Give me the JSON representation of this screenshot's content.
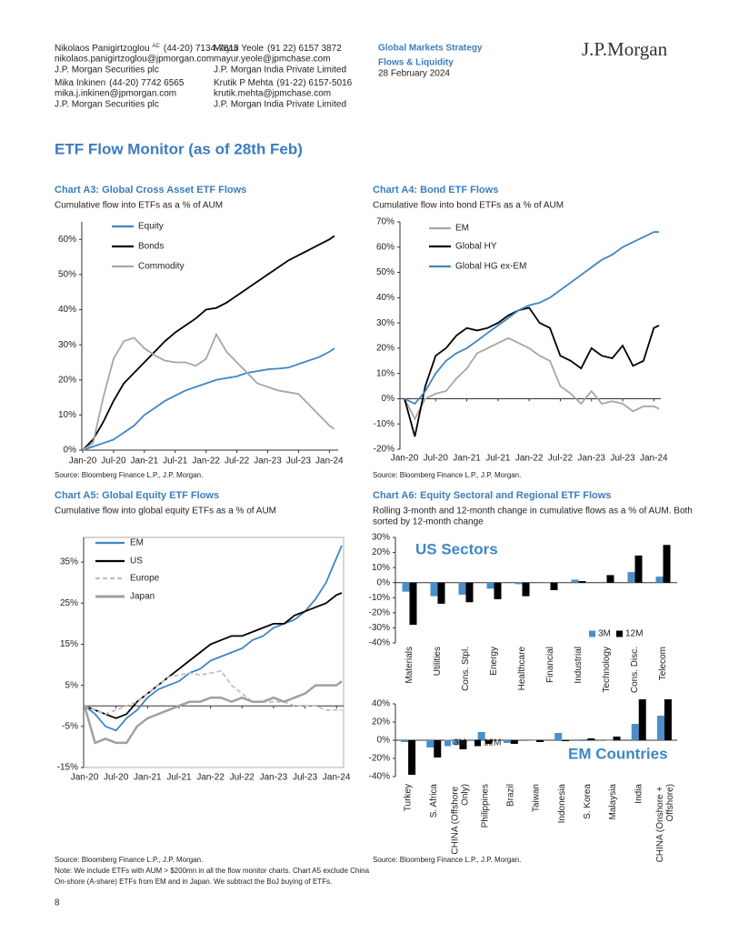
{
  "header": {
    "authors": [
      {
        "name": "Nikolaos Panigirtzoglou",
        "sup": "AC",
        "phone": "(44-20) 7134-7815",
        "email": "nikolaos.panigirtzoglou@jpmorgan.com",
        "firm": "J.P. Morgan Securities plc"
      },
      {
        "name": "Mayur Yeole",
        "phone": "(91 22) 6157 3872",
        "email": "mayur.yeole@jpmchase.com",
        "firm": "J.P. Morgan India Private Limited"
      },
      {
        "name": "Mika Inkinen",
        "phone": "(44-20) 7742 6565",
        "email": "mika.j.inkinen@jpmorgan.com",
        "firm": "J.P. Morgan Securities plc"
      },
      {
        "name": "Krutik P Mehta",
        "phone": "(91-22) 6157-5016",
        "email": "krutik.mehta@jpmchase.com",
        "firm": "J.P. Morgan India Private Limited"
      }
    ],
    "series_name": "Global Markets Strategy",
    "publication": "Flows & Liquidity",
    "date": "28 February 2024",
    "logo": "J.P.Morgan"
  },
  "title": "ETF Flow Monitor (as of 28th Feb)",
  "page_number": "8",
  "chart_data": [
    {
      "type": "line",
      "title": "Chart A3: Global Cross Asset ETF Flows",
      "subtitle": "Cumulative flow into ETFs as a % of AUM",
      "x": [
        "Jan-20",
        "Mar-20",
        "May-20",
        "Jul-20",
        "Sep-20",
        "Nov-20",
        "Jan-21",
        "Mar-21",
        "May-21",
        "Jul-21",
        "Sep-21",
        "Nov-21",
        "Jan-22",
        "Mar-22",
        "May-22",
        "Jul-22",
        "Sep-22",
        "Nov-22",
        "Jan-23",
        "Mar-23",
        "May-23",
        "Jul-23",
        "Sep-23",
        "Nov-23",
        "Jan-24",
        "Feb-24"
      ],
      "xticks": [
        "Jan-20",
        "Jul-20",
        "Jan-21",
        "Jul-21",
        "Jan-22",
        "Jul-22",
        "Jan-23",
        "Jul-23",
        "Jan-24"
      ],
      "ylim": [
        0,
        65
      ],
      "yticks": [
        {
          "value": 0,
          "label": "0%"
        },
        {
          "value": 10,
          "label": "10%"
        },
        {
          "value": 20,
          "label": "20%"
        },
        {
          "value": 30,
          "label": "30%"
        },
        {
          "value": 40,
          "label": "40%"
        },
        {
          "value": 50,
          "label": "50%"
        },
        {
          "value": 60,
          "label": "60%"
        }
      ],
      "series": [
        {
          "name": "Equity",
          "color": "#3f86c5",
          "values": [
            0,
            1,
            2,
            3,
            5,
            7,
            10,
            12,
            14,
            15.5,
            17,
            18,
            19,
            20,
            20.5,
            21,
            22,
            22.5,
            23,
            23.2,
            23.5,
            24.5,
            25.5,
            26.5,
            28,
            29
          ]
        },
        {
          "name": "Bonds",
          "color": "#000000",
          "values": [
            0,
            3,
            8,
            14,
            19,
            22,
            25,
            28,
            31,
            33.5,
            35.5,
            37.5,
            40,
            40.5,
            42,
            44,
            46,
            48,
            50,
            52,
            54,
            55.5,
            57,
            58.5,
            60,
            61
          ]
        },
        {
          "name": "Commodity",
          "color": "#a6a6a6",
          "values": [
            0,
            2,
            15,
            26,
            31,
            32,
            29,
            27,
            25.5,
            25,
            25,
            24,
            26,
            33,
            28,
            25,
            22,
            19,
            18,
            17,
            16.5,
            16,
            13,
            10,
            7,
            6
          ]
        }
      ],
      "source": "Source: Bloomberg Finance L.P., J.P. Morgan."
    },
    {
      "type": "line",
      "title": "Chart A4: Bond ETF Flows",
      "subtitle": "Cumulative flow into bond ETFs as a % of AUM",
      "x": [
        "Jan-20",
        "Mar-20",
        "May-20",
        "Jul-20",
        "Sep-20",
        "Nov-20",
        "Jan-21",
        "Mar-21",
        "May-21",
        "Jul-21",
        "Sep-21",
        "Nov-21",
        "Jan-22",
        "Mar-22",
        "May-22",
        "Jul-22",
        "Sep-22",
        "Nov-22",
        "Jan-23",
        "Mar-23",
        "May-23",
        "Jul-23",
        "Sep-23",
        "Nov-23",
        "Jan-24",
        "Feb-24"
      ],
      "xticks": [
        "Jan-20",
        "Jul-20",
        "Jan-21",
        "Jul-21",
        "Jan-22",
        "Jul-22",
        "Jan-23",
        "Jul-23",
        "Jan-24"
      ],
      "ylim": [
        -20,
        70
      ],
      "yticks": [
        {
          "value": -20,
          "label": "-20%"
        },
        {
          "value": -10,
          "label": "-10%"
        },
        {
          "value": 0,
          "label": "0%"
        },
        {
          "value": 10,
          "label": "10%"
        },
        {
          "value": 20,
          "label": "20%"
        },
        {
          "value": 30,
          "label": "30%"
        },
        {
          "value": 40,
          "label": "40%"
        },
        {
          "value": 50,
          "label": "50%"
        },
        {
          "value": 60,
          "label": "60%"
        },
        {
          "value": 70,
          "label": "70%"
        }
      ],
      "series": [
        {
          "name": "EM",
          "color": "#a6a6a6",
          "values": [
            0,
            -8,
            0,
            2,
            3,
            8,
            12,
            18,
            20,
            22,
            24,
            22,
            20,
            17,
            15,
            5,
            2,
            -2,
            3,
            -2,
            -1,
            -2,
            -5,
            -3,
            -3,
            -4
          ]
        },
        {
          "name": "Global HY",
          "color": "#000000",
          "values": [
            0,
            -15,
            5,
            17,
            20,
            25,
            28,
            27,
            28,
            30,
            33,
            35,
            36,
            30,
            28,
            17,
            15,
            12,
            20,
            17,
            16,
            21,
            13,
            15,
            28,
            29
          ]
        },
        {
          "name": "Global HG ex-EM",
          "color": "#3f86c5",
          "values": [
            0,
            -2,
            3,
            10,
            15,
            18,
            20,
            23,
            26,
            29,
            32,
            35,
            37,
            38,
            40,
            43,
            46,
            49,
            52,
            55,
            57,
            60,
            62,
            64,
            66,
            66
          ]
        }
      ],
      "source": "Source: Bloomberg Finance L.P., J.P. Morgan."
    },
    {
      "type": "line",
      "title": "Chart A5: Global Equity ETF Flows",
      "subtitle": "Cumulative flow into global equity ETFs as a % of AUM",
      "x": [
        "Jan-20",
        "Mar-20",
        "May-20",
        "Jul-20",
        "Sep-20",
        "Nov-20",
        "Jan-21",
        "Mar-21",
        "May-21",
        "Jul-21",
        "Sep-21",
        "Nov-21",
        "Jan-22",
        "Mar-22",
        "May-22",
        "Jul-22",
        "Sep-22",
        "Nov-22",
        "Jan-23",
        "Mar-23",
        "May-23",
        "Jul-23",
        "Sep-23",
        "Nov-23",
        "Jan-24",
        "Feb-24"
      ],
      "xticks": [
        "Jan-20",
        "Jul-20",
        "Jan-21",
        "Jul-21",
        "Jan-22",
        "Jul-22",
        "Jan-23",
        "Jul-23",
        "Jan-24"
      ],
      "ylim": [
        -15,
        41
      ],
      "yticks": [
        {
          "value": -15,
          "label": "-15%"
        },
        {
          "value": -5,
          "label": "-5%"
        },
        {
          "value": 5,
          "label": "5%"
        },
        {
          "value": 15,
          "label": "15%"
        },
        {
          "value": 25,
          "label": "25%"
        },
        {
          "value": 35,
          "label": "35%"
        }
      ],
      "series": [
        {
          "name": "EM",
          "color": "#3f86c5",
          "values": [
            0,
            -2,
            -5,
            -6,
            -3,
            -1,
            2,
            4,
            5,
            6,
            8,
            9,
            11,
            12,
            13,
            14,
            16,
            17,
            19,
            20,
            21,
            23,
            26,
            30,
            36,
            39
          ]
        },
        {
          "name": "US",
          "color": "#000000",
          "values": [
            0,
            -1,
            -2,
            -3,
            -2,
            1,
            3,
            5,
            7,
            9,
            11,
            13,
            15,
            16,
            17,
            17,
            18,
            19,
            20,
            20,
            22,
            23,
            24,
            25,
            27,
            27.5
          ]
        },
        {
          "name": "Europe",
          "color": "#bfbfbf",
          "dashed": true,
          "values": [
            0,
            -1,
            -2,
            -1,
            0,
            1,
            3,
            5,
            7,
            7.5,
            8,
            7.5,
            8,
            8.5,
            5,
            3,
            1,
            1,
            1,
            1,
            0,
            0,
            0,
            -1,
            -1,
            -1
          ]
        },
        {
          "name": "Japan",
          "color": "#a0a0a0",
          "values": [
            0,
            -9,
            -8,
            -9,
            -9,
            -5,
            -3,
            -2,
            -1,
            0,
            1,
            1,
            2,
            2,
            1,
            2,
            1,
            1,
            2,
            1,
            2,
            3,
            5,
            5,
            5,
            6
          ]
        }
      ],
      "source": "Source: Bloomberg Finance L.P., J.P. Morgan.",
      "note": [
        "Note: We include ETFs with AUM > $200mn in all the flow monitor charts. Chart A5 exclude China",
        "On-shore (A-share) ETFs from EM and in Japan. We subtract the BoJ buying of ETFs."
      ]
    },
    {
      "type": "bar",
      "title": "Chart A6: Equity Sectoral and Regional ETF Flows",
      "subtitle": [
        "Rolling 3-month and 12-month change in cumulative flows as a % of AUM. Both",
        "sorted by 12-month change"
      ],
      "panels": [
        {
          "label": "US Sectors",
          "categories": [
            "Materials",
            "Utilities",
            "Cons. Stpl.",
            "Energy",
            "Healthcare",
            "Financial",
            "Industrial",
            "Technology",
            "Cons. Disc.",
            "Telecom"
          ],
          "ylim": [
            -40,
            30
          ],
          "yticks": [
            {
              "value": 30,
              "label": "30%"
            },
            {
              "value": 20,
              "label": "20%"
            },
            {
              "value": 10,
              "label": "10%"
            },
            {
              "value": 0,
              "label": "0%"
            },
            {
              "value": -10,
              "label": "-10%"
            },
            {
              "value": -20,
              "label": "-20%"
            },
            {
              "value": -30,
              "label": "-30%"
            },
            {
              "value": -40,
              "label": "-40%"
            }
          ],
          "series": [
            {
              "name": "3M",
              "color": "#4a8fc9",
              "values": [
                -6,
                -9,
                -8,
                -4,
                -1,
                0,
                2,
                0.5,
                7,
                4
              ]
            },
            {
              "name": "12M",
              "color": "#000000",
              "values": [
                -28,
                -14,
                -13,
                -11,
                -9,
                -5,
                1,
                5,
                18,
                25
              ]
            }
          ]
        },
        {
          "label": "EM Countries",
          "categories": [
            "Turkey",
            "S. Africa",
            "CHINA (Offshore Only)",
            "Philippines",
            "Brazil",
            "Taiwan",
            "Indonesia",
            "S. Korea",
            "Malaysia",
            "India",
            "CHINA (Onshore + Offshore)"
          ],
          "ylim": [
            -40,
            40
          ],
          "yticks": [
            {
              "value": 40,
              "label": "40%"
            },
            {
              "value": 20,
              "label": "20%"
            },
            {
              "value": 0,
              "label": "0%"
            },
            {
              "value": -20,
              "label": "-20%"
            },
            {
              "value": -40,
              "label": "-40%"
            }
          ],
          "series": [
            {
              "name": "3M",
              "color": "#4a8fc9",
              "values": [
                -2,
                -8,
                -5,
                9,
                -3,
                0,
                8,
                1,
                0,
                18,
                27
              ]
            },
            {
              "name": "12M",
              "color": "#000000",
              "values": [
                -38,
                -19,
                -10,
                -4,
                -4,
                -2,
                -1,
                2,
                4,
                45,
                45
              ]
            }
          ]
        }
      ],
      "source": "Source: Bloomberg Finance L.P., J.P. Morgan."
    }
  ]
}
